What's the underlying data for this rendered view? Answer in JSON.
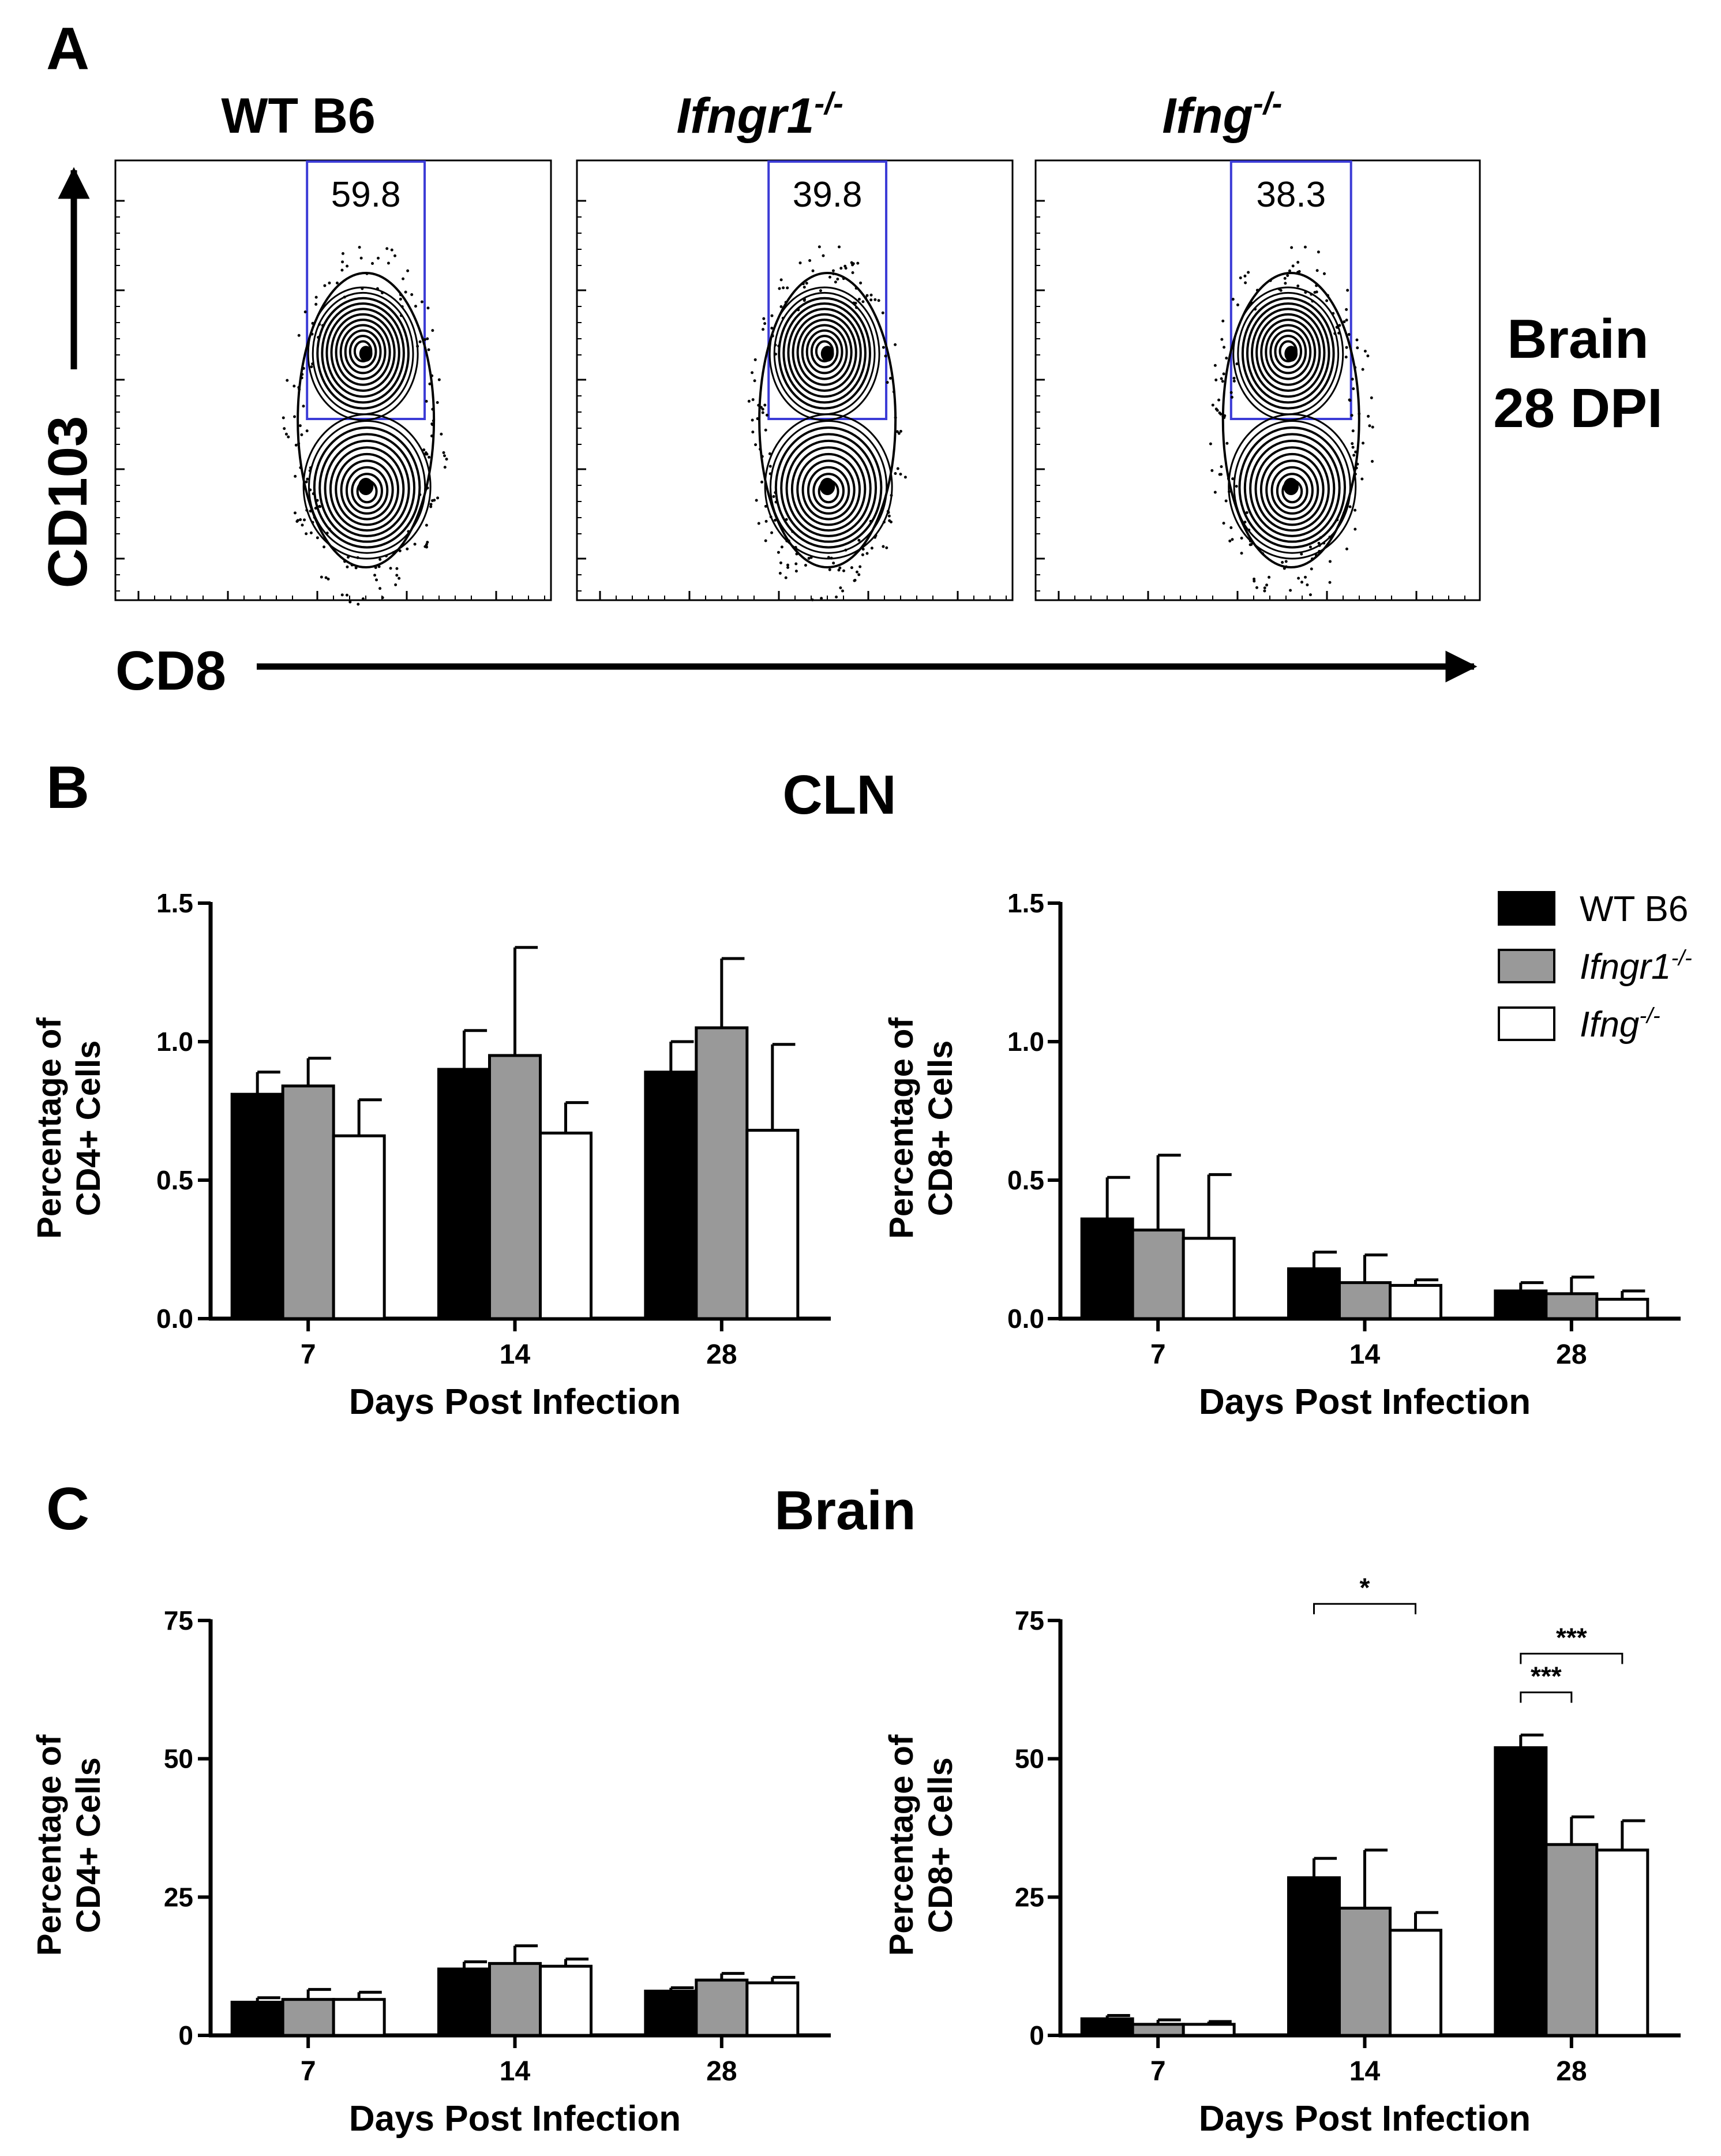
{
  "panel_letters": {
    "a": "A",
    "b": "B",
    "c": "C"
  },
  "panel_a": {
    "plots": [
      {
        "title": "WT B6",
        "title_base": "",
        "title_sup": "",
        "gate_value": "59.8"
      },
      {
        "title": "",
        "title_base": "Ifngr1",
        "title_sup": "-/-",
        "gate_value": "39.8"
      },
      {
        "title": "",
        "title_base": "Ifng",
        "title_sup": "-/-",
        "gate_value": "38.3"
      }
    ],
    "y_axis_label": "CD103",
    "x_axis_label": "CD8",
    "side_label_line1": "Brain",
    "side_label_line2": "28 DPI"
  },
  "panel_b": {
    "title": "CLN"
  },
  "panel_c": {
    "title": "Brain"
  },
  "legend": {
    "entries": [
      {
        "base": "WT B6",
        "sup": "",
        "italic": false
      },
      {
        "base": "Ifngr1",
        "sup": "-/-",
        "italic": true
      },
      {
        "base": "Ifng",
        "sup": "-/-",
        "italic": true
      }
    ]
  },
  "colors": {
    "wt": "#000000",
    "ifngr1": "#999999",
    "ifng": "#ffffff",
    "gate": "#3b3bd6"
  },
  "chart_data": [
    {
      "type": "bar",
      "panel": "B",
      "position": "left",
      "categories": [
        "7",
        "14",
        "28"
      ],
      "ylabel_line1": "Percentage of",
      "ylabel_line2": "CD4+ Cells",
      "xlabel": "Days Post Infection",
      "ylim": [
        0,
        1.5
      ],
      "yticks": [
        "0.0",
        "0.5",
        "1.0",
        "1.5"
      ],
      "series": [
        {
          "key": "wt",
          "values": [
            0.81,
            0.9,
            0.89
          ],
          "errors": [
            0.08,
            0.14,
            0.11
          ]
        },
        {
          "key": "ifngr1",
          "values": [
            0.84,
            0.95,
            1.05
          ],
          "errors": [
            0.1,
            0.39,
            0.25
          ]
        },
        {
          "key": "ifng",
          "values": [
            0.66,
            0.67,
            0.68
          ],
          "errors": [
            0.13,
            0.11,
            0.31
          ]
        }
      ],
      "significance": []
    },
    {
      "type": "bar",
      "panel": "B",
      "position": "right",
      "categories": [
        "7",
        "14",
        "28"
      ],
      "ylabel_line1": "Percentage of",
      "ylabel_line2": "CD8+ Cells",
      "xlabel": "Days Post Infection",
      "ylim": [
        0,
        1.5
      ],
      "yticks": [
        "0.0",
        "0.5",
        "1.0",
        "1.5"
      ],
      "series": [
        {
          "key": "wt",
          "values": [
            0.36,
            0.18,
            0.1
          ],
          "errors": [
            0.15,
            0.06,
            0.03
          ]
        },
        {
          "key": "ifngr1",
          "values": [
            0.32,
            0.13,
            0.09
          ],
          "errors": [
            0.27,
            0.1,
            0.06
          ]
        },
        {
          "key": "ifng",
          "values": [
            0.29,
            0.12,
            0.07
          ],
          "errors": [
            0.23,
            0.02,
            0.03
          ]
        }
      ],
      "significance": []
    },
    {
      "type": "bar",
      "panel": "C",
      "position": "left",
      "categories": [
        "7",
        "14",
        "28"
      ],
      "ylabel_line1": "Percentage of",
      "ylabel_line2": "CD4+ Cells",
      "xlabel": "Days Post Infection",
      "ylim": [
        0,
        75
      ],
      "yticks": [
        "0",
        "25",
        "50",
        "75"
      ],
      "series": [
        {
          "key": "wt",
          "values": [
            6,
            12,
            8
          ],
          "errors": [
            0.8,
            1.3,
            0.6
          ]
        },
        {
          "key": "ifngr1",
          "values": [
            6.5,
            13,
            10
          ],
          "errors": [
            1.8,
            3.2,
            1.2
          ]
        },
        {
          "key": "ifng",
          "values": [
            6.5,
            12.5,
            9.5
          ],
          "errors": [
            1.3,
            1.3,
            1.0
          ]
        }
      ],
      "significance": []
    },
    {
      "type": "bar",
      "panel": "C",
      "position": "right",
      "categories": [
        "7",
        "14",
        "28"
      ],
      "ylabel_line1": "Percentage of",
      "ylabel_line2": "CD8+ Cells",
      "xlabel": "Days Post Infection",
      "ylim": [
        0,
        75
      ],
      "yticks": [
        "0",
        "25",
        "50",
        "75"
      ],
      "series": [
        {
          "key": "wt",
          "values": [
            3,
            28.5,
            52
          ],
          "errors": [
            0.6,
            3.5,
            2.3
          ]
        },
        {
          "key": "ifngr1",
          "values": [
            2,
            23,
            34.5
          ],
          "errors": [
            0.8,
            10.5,
            5
          ]
        },
        {
          "key": "ifng",
          "values": [
            2,
            19,
            33.5
          ],
          "errors": [
            0.5,
            3.2,
            5.3
          ]
        }
      ],
      "significance": [
        {
          "group": 1,
          "from": 0,
          "to": 2,
          "label": "*",
          "level": 78
        },
        {
          "group": 2,
          "from": 0,
          "to": 1,
          "label": "***",
          "level": 62
        },
        {
          "group": 2,
          "from": 0,
          "to": 2,
          "label": "***",
          "level": 69
        }
      ]
    }
  ]
}
